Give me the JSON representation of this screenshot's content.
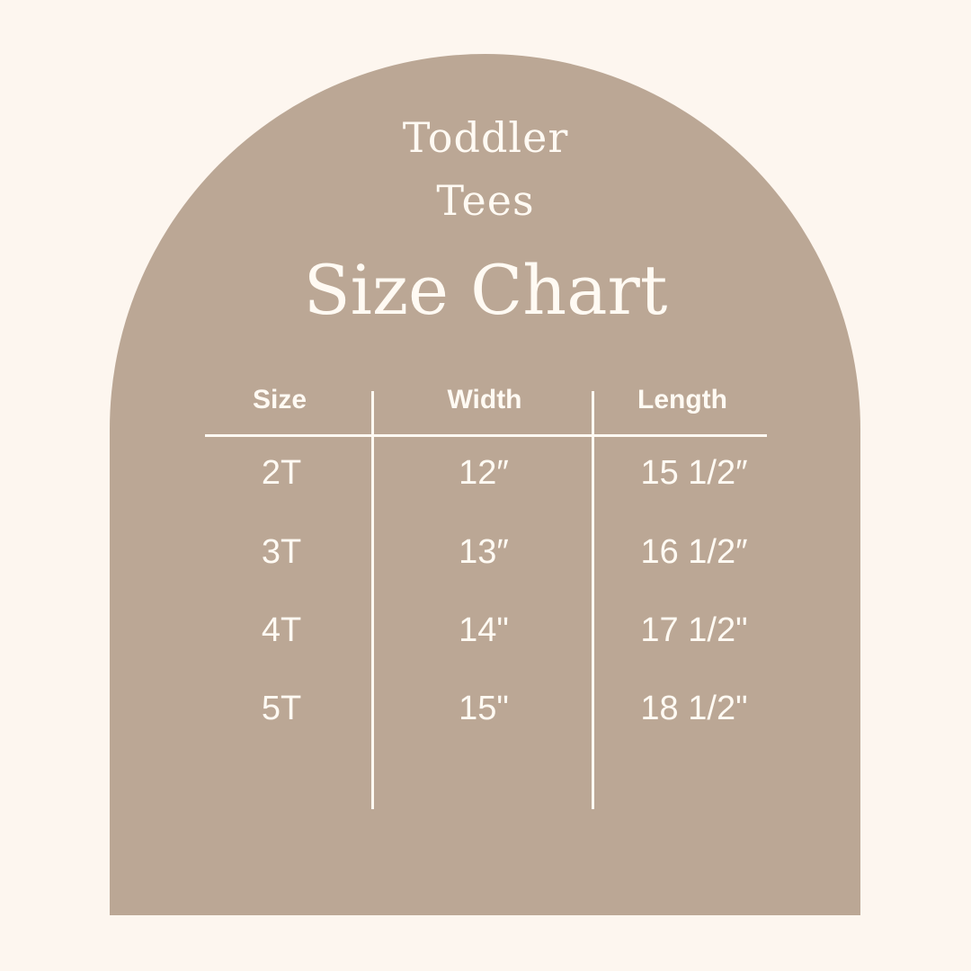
{
  "title": {
    "line1": "Toddler",
    "line2": "Tees",
    "line3": "Size Chart"
  },
  "colors": {
    "background": "#fdf6ef",
    "arch": "#bba795",
    "text": "#fffaf3"
  },
  "table": {
    "headers": [
      "Size",
      "Width",
      "Length"
    ],
    "rows": [
      [
        "2T",
        "12″",
        "15 1/2″"
      ],
      [
        "3T",
        "13″",
        "16 1/2″"
      ],
      [
        "4T",
        "14\"",
        "17 1/2\""
      ],
      [
        "5T",
        "15\"",
        "18 1/2\""
      ]
    ]
  }
}
